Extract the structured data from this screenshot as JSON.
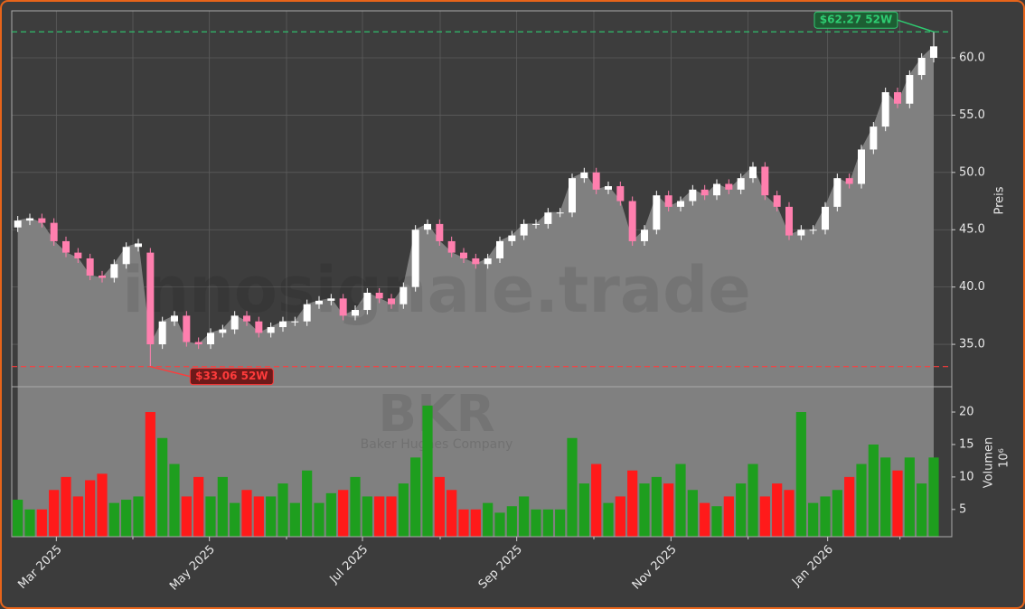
{
  "chart_data": {
    "type": "candlestick",
    "categories": [
      null,
      null,
      null,
      null,
      null,
      null,
      null,
      null,
      null,
      null,
      null,
      null,
      null,
      null,
      null,
      null,
      null,
      null,
      null,
      null,
      null,
      null,
      null,
      null,
      null,
      null,
      null,
      null,
      null,
      null,
      null,
      null,
      null,
      null,
      null,
      null,
      null,
      null,
      null,
      null,
      null,
      null,
      null,
      null,
      null,
      null,
      null,
      null,
      null,
      null,
      null,
      null,
      null,
      null,
      null,
      null,
      null,
      null,
      null,
      null,
      null,
      null,
      null,
      null,
      null,
      null,
      null,
      null,
      null,
      null,
      null,
      null,
      null,
      null,
      null,
      null,
      null
    ],
    "xlim": [
      -0.5,
      77.5
    ],
    "xticks": [
      {
        "value": 3.2,
        "label": "Mar 2025"
      },
      {
        "value": 15.9,
        "label": "May 2025"
      },
      {
        "value": 28.6,
        "label": "Jul 2025"
      },
      {
        "value": 41.4,
        "label": "Sep 2025"
      },
      {
        "value": 54.2,
        "label": "Nov 2025"
      },
      {
        "value": 67.2,
        "label": "Jan 2026"
      }
    ],
    "xminor_ticks": [
      9.55,
      22.3,
      35.05,
      47.8,
      60.6,
      73.2
    ],
    "ylim": [
      31.3,
      64.1
    ],
    "yticks": [
      {
        "value": 35,
        "label": "35.0"
      },
      {
        "value": 40,
        "label": "40.0"
      },
      {
        "value": 45,
        "label": "45.0"
      },
      {
        "value": 50,
        "label": "50.0"
      },
      {
        "value": 55,
        "label": "55.0"
      },
      {
        "value": 60,
        "label": "60.0"
      }
    ],
    "ylabel": "Preis",
    "grid": true,
    "open": [
      45.2,
      45.8,
      46.0,
      45.6,
      44.0,
      43.0,
      42.5,
      41.0,
      40.8,
      42.0,
      43.5,
      43.0,
      35.0,
      37.0,
      37.5,
      35.2,
      35.0,
      36.0,
      36.3,
      37.5,
      37.0,
      36.0,
      36.5,
      37.0,
      37.0,
      38.5,
      38.8,
      39.0,
      37.5,
      38.0,
      39.5,
      39.0,
      38.5,
      40.0,
      45.0,
      45.5,
      44.0,
      43.0,
      42.5,
      42.0,
      42.5,
      44.0,
      44.5,
      45.5,
      45.5,
      46.5,
      46.5,
      49.5,
      50.0,
      48.5,
      48.8,
      47.5,
      44.0,
      45.0,
      48.0,
      47.0,
      47.5,
      48.5,
      48.0,
      49.0,
      48.5,
      49.5,
      50.5,
      48.0,
      47.0,
      44.5,
      45.0,
      45.0,
      47.0,
      49.5,
      49.0,
      52.0,
      54.0,
      57.0,
      56.0,
      58.5,
      60.0
    ],
    "high": [
      46.2,
      46.4,
      46.4,
      46.0,
      44.4,
      43.4,
      42.9,
      41.4,
      42.4,
      43.9,
      44.2,
      43.4,
      37.4,
      37.9,
      37.9,
      35.6,
      36.4,
      36.7,
      37.9,
      37.9,
      37.4,
      36.9,
      37.4,
      37.4,
      38.9,
      39.2,
      39.4,
      39.4,
      38.4,
      39.9,
      39.9,
      39.4,
      40.4,
      45.4,
      45.9,
      45.9,
      44.4,
      43.4,
      42.9,
      42.9,
      44.4,
      44.9,
      45.9,
      45.9,
      46.9,
      46.9,
      49.9,
      50.4,
      50.4,
      49.2,
      49.2,
      47.9,
      45.4,
      48.4,
      48.4,
      47.9,
      48.9,
      48.9,
      49.4,
      49.4,
      49.9,
      50.9,
      50.9,
      48.4,
      47.4,
      45.4,
      45.4,
      47.4,
      49.9,
      49.9,
      52.4,
      54.4,
      57.4,
      57.4,
      58.9,
      60.4,
      62.27
    ],
    "low": [
      44.8,
      45.4,
      45.2,
      43.6,
      42.6,
      42.1,
      40.6,
      40.4,
      40.4,
      41.6,
      43.1,
      33.06,
      34.6,
      36.6,
      34.8,
      34.6,
      34.6,
      35.6,
      35.9,
      36.6,
      35.6,
      35.6,
      36.1,
      36.6,
      36.6,
      38.1,
      38.4,
      37.1,
      37.1,
      37.6,
      38.6,
      38.1,
      38.1,
      39.6,
      44.6,
      43.6,
      42.6,
      42.1,
      41.6,
      41.6,
      42.1,
      43.6,
      44.1,
      45.1,
      45.1,
      46.1,
      46.1,
      49.1,
      48.1,
      48.1,
      47.1,
      43.6,
      43.6,
      44.6,
      46.6,
      46.6,
      47.1,
      47.6,
      47.6,
      48.1,
      48.1,
      49.1,
      47.6,
      46.6,
      44.1,
      44.1,
      44.6,
      44.6,
      46.6,
      48.6,
      48.6,
      51.6,
      53.6,
      55.6,
      55.6,
      58.1,
      59.6
    ],
    "close": [
      45.8,
      46.0,
      45.6,
      44.0,
      43.0,
      42.5,
      41.0,
      40.8,
      42.0,
      43.5,
      43.8,
      35.0,
      37.0,
      37.5,
      35.2,
      35.0,
      36.0,
      36.3,
      37.5,
      37.0,
      36.0,
      36.5,
      37.0,
      37.0,
      38.5,
      38.8,
      39.0,
      37.5,
      38.0,
      39.5,
      39.0,
      38.5,
      40.0,
      45.0,
      45.5,
      44.0,
      43.0,
      42.5,
      42.0,
      42.5,
      44.0,
      44.5,
      45.5,
      45.5,
      46.5,
      46.5,
      49.5,
      50.0,
      48.5,
      48.8,
      47.5,
      44.0,
      45.0,
      48.0,
      47.0,
      47.5,
      48.5,
      48.0,
      49.0,
      48.5,
      49.5,
      50.5,
      48.0,
      47.0,
      44.5,
      45.0,
      45.0,
      47.0,
      49.5,
      49.0,
      52.0,
      54.0,
      57.0,
      56.0,
      58.5,
      60.0,
      61.0
    ],
    "up_color": "#ffffff",
    "down_color": "#ff7fae",
    "area_color": "#808080",
    "volume": {
      "values": [
        6.5,
        5,
        5,
        8,
        10,
        7,
        9.5,
        10.5,
        6,
        6.5,
        7,
        20,
        16,
        12,
        7,
        10,
        7,
        10,
        6,
        8,
        7,
        7,
        9,
        6,
        11,
        6,
        7.5,
        8,
        10,
        7,
        7,
        7,
        9,
        13,
        21,
        10,
        8,
        5,
        5,
        6,
        4.5,
        5.5,
        7,
        5,
        5,
        5,
        16,
        9,
        12,
        6,
        7,
        11,
        9,
        10,
        9,
        12,
        8,
        6,
        5.5,
        7,
        9,
        12,
        7,
        9,
        8,
        20,
        6,
        7,
        8,
        10,
        12,
        15,
        13,
        11,
        13,
        9,
        13
      ],
      "ylim": [
        0.8,
        23.9
      ],
      "yticks": [
        5,
        10,
        15,
        20
      ],
      "ylabel": "Volumen",
      "scale_label": "10⁶",
      "up_color": "#1e9e1e",
      "down_color": "#ff1a1a"
    },
    "watermark": {
      "site": "innosignale.trade",
      "symbol": "BKR",
      "company": "Baker Hughes Company"
    },
    "annotations": [
      {
        "value": 62.27,
        "label": "$62.27 52W",
        "index": 76,
        "color": "#2ecc71",
        "box": "#1d5e33"
      },
      {
        "value": 33.06,
        "label": "$33.06 52W",
        "index": 11,
        "color": "#ff3b3b",
        "box": "#6e1a1a"
      }
    ]
  }
}
